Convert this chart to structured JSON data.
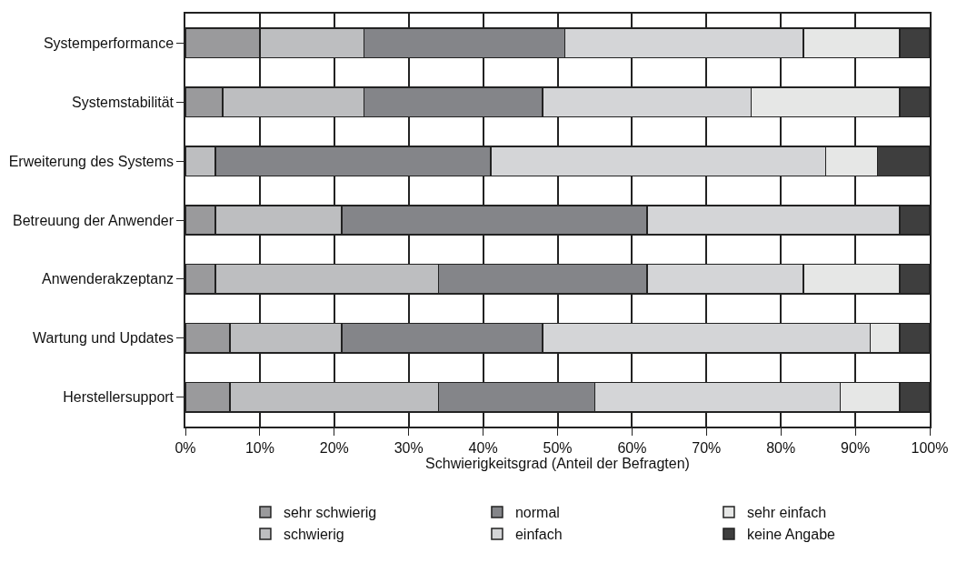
{
  "chart_data": {
    "type": "bar",
    "orientation": "horizontal",
    "stacked": true,
    "categories": [
      "Systemperformance",
      "Systemstabilität",
      "Erweiterung des Systems",
      "Betreuung der Anwender",
      "Anwenderakzeptanz",
      "Wartung und Updates",
      "Herstellersupport"
    ],
    "series": [
      {
        "name": "sehr schwierig",
        "color": "#9a9a9c",
        "values": [
          10,
          5,
          0,
          4,
          4,
          6,
          6
        ]
      },
      {
        "name": "schwierig",
        "color": "#bdbec0",
        "values": [
          14,
          19,
          4,
          17,
          30,
          15,
          28
        ]
      },
      {
        "name": "normal",
        "color": "#848589",
        "values": [
          27,
          24,
          37,
          41,
          28,
          27,
          21
        ]
      },
      {
        "name": "einfach",
        "color": "#d4d5d7",
        "values": [
          32,
          28,
          45,
          34,
          21,
          44,
          33
        ]
      },
      {
        "name": "sehr einfach",
        "color": "#e6e7e6",
        "values": [
          13,
          20,
          7,
          0,
          13,
          4,
          8
        ]
      },
      {
        "name": "keine Angabe",
        "color": "#3e3e3e",
        "values": [
          4,
          4,
          7,
          4,
          4,
          4,
          4
        ]
      }
    ],
    "xlabel": "Schwierigkeitsgrad (Anteil der Befragten)",
    "xlim": [
      0,
      100
    ],
    "xticks": [
      {
        "value": 0,
        "label": "0%"
      },
      {
        "value": 10,
        "label": "10%"
      },
      {
        "value": 20,
        "label": "20%"
      },
      {
        "value": 30,
        "label": "30%"
      },
      {
        "value": 40,
        "label": "40%"
      },
      {
        "value": 50,
        "label": "50%"
      },
      {
        "value": 60,
        "label": "60%"
      },
      {
        "value": 70,
        "label": "70%"
      },
      {
        "value": 80,
        "label": "80%"
      },
      {
        "value": 90,
        "label": "90%"
      },
      {
        "value": 100,
        "label": "100%"
      }
    ],
    "grid": "x",
    "legend": "bottom"
  }
}
